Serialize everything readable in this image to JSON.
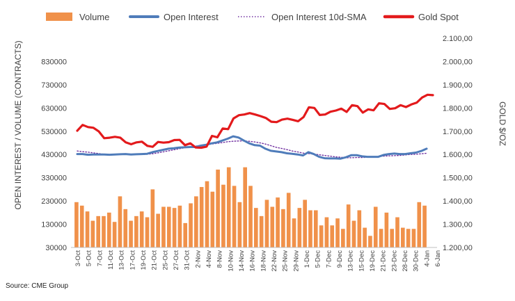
{
  "colors": {
    "volume": "#F0914A",
    "open_interest": "#4F7CBA",
    "sma": "#7030A0",
    "gold": "#E31A1C",
    "text": "#404040"
  },
  "legend": [
    {
      "key": "volume",
      "label": "Volume",
      "style": "bar"
    },
    {
      "key": "open_interest",
      "label": "Open Interest",
      "style": "line"
    },
    {
      "key": "sma",
      "label": "Open Interest 10d-SMA",
      "style": "dotted"
    },
    {
      "key": "gold",
      "label": "Gold Spot",
      "style": "thick"
    }
  ],
  "source": "Source: CME Group",
  "chart_data": {
    "type": "bar",
    "ylabel": "OPEN INTEREST / VOLUME (CONTRACTS)",
    "y2label": "GOLD $/OZ",
    "ylim": [
      30000,
      930000
    ],
    "y_ticks": [
      "30000",
      "130000",
      "230000",
      "330000",
      "430000",
      "530000",
      "630000",
      "730000",
      "830000"
    ],
    "y2lim": [
      1200,
      2100
    ],
    "y2_ticks": [
      "1.200,00",
      "1.300,00",
      "1.400,00",
      "1.500,00",
      "1.600,00",
      "1.700,00",
      "1.800,00",
      "1.900,00",
      "2.000,00",
      "2.100,00"
    ],
    "x_labels": [
      "3-Oct",
      "5-Oct",
      "7-Oct",
      "11-Oct",
      "13-Oct",
      "17-Oct",
      "19-Oct",
      "21-Oct",
      "25-Oct",
      "27-Oct",
      "31-Oct",
      "2-Nov",
      "4-Nov",
      "8-Nov",
      "10-Nov",
      "14-Nov",
      "16-Nov",
      "18-Nov",
      "22-Nov",
      "25-Nov",
      "29-Nov",
      "1-Dec",
      "5-Dec",
      "7-Dec",
      "9-Dec",
      "13-Dec",
      "15-Dec",
      "19-Dec",
      "21-Dec",
      "23-Dec",
      "28-Dec",
      "30-Dec",
      "4-Jan",
      "6-Jan"
    ],
    "series": [
      {
        "name": "Volume",
        "kind": "bar",
        "axis": "left",
        "values": [
          225000,
          210000,
          185000,
          145000,
          165000,
          165000,
          180000,
          140000,
          250000,
          195000,
          145000,
          165000,
          185000,
          160000,
          280000,
          175000,
          205000,
          205000,
          200000,
          210000,
          135000,
          220000,
          250000,
          290000,
          315000,
          270000,
          365000,
          300000,
          375000,
          295000,
          225000,
          375000,
          295000,
          200000,
          165000,
          235000,
          205000,
          245000,
          195000,
          265000,
          155000,
          200000,
          235000,
          190000,
          190000,
          125000,
          160000,
          125000,
          155000,
          110000,
          215000,
          145000,
          190000,
          115000,
          80000,
          205000,
          110000,
          180000,
          110000,
          160000,
          115000,
          110000,
          110000,
          225000,
          210000
        ]
      },
      {
        "name": "Open Interest",
        "kind": "line",
        "axis": "left",
        "values": [
          432000,
          432000,
          429000,
          430000,
          430000,
          430000,
          429000,
          430000,
          431000,
          432000,
          430000,
          431000,
          432000,
          433000,
          440000,
          445000,
          450000,
          455000,
          457000,
          460000,
          461000,
          462000,
          462000,
          468000,
          472000,
          478000,
          482000,
          490000,
          498000,
          508000,
          503000,
          490000,
          478000,
          470000,
          468000,
          455000,
          446000,
          443000,
          440000,
          435000,
          433000,
          430000,
          426000,
          440000,
          432000,
          420000,
          414000,
          413000,
          413000,
          412000,
          418000,
          427000,
          427000,
          422000,
          420000,
          420000,
          420000,
          428000,
          432000,
          434000,
          432000,
          432000,
          435000,
          438000,
          445000,
          455000
        ]
      },
      {
        "name": "Open Interest 10d-SMA",
        "kind": "line",
        "axis": "left",
        "values": [
          445000,
          442000,
          440000,
          437000,
          434000,
          431000,
          430000,
          430000,
          430000,
          431000,
          430000,
          430000,
          430000,
          431000,
          433000,
          437000,
          441000,
          446000,
          450000,
          455000,
          459000,
          463000,
          466000,
          469000,
          472000,
          475000,
          478000,
          481000,
          485000,
          487000,
          488000,
          488000,
          487000,
          484000,
          480000,
          475000,
          468000,
          461000,
          456000,
          451000,
          445000,
          441000,
          436000,
          434000,
          432000,
          429000,
          426000,
          423000,
          420000,
          418000,
          416000,
          416000,
          417000,
          417000,
          418000,
          420000,
          421000,
          423000,
          424000,
          425000,
          426000,
          428000,
          430000,
          431000,
          433000,
          435000
        ]
      },
      {
        "name": "Gold Spot",
        "kind": "line",
        "axis": "right",
        "values": [
          1702,
          1727,
          1718,
          1715,
          1699,
          1670,
          1672,
          1676,
          1672,
          1652,
          1644,
          1652,
          1655,
          1637,
          1633,
          1654,
          1651,
          1653,
          1662,
          1663,
          1640,
          1648,
          1630,
          1629,
          1634,
          1680,
          1674,
          1712,
          1709,
          1755,
          1769,
          1772,
          1778,
          1772,
          1765,
          1757,
          1741,
          1739,
          1750,
          1754,
          1749,
          1743,
          1761,
          1803,
          1800,
          1770,
          1772,
          1784,
          1789,
          1797,
          1783,
          1812,
          1808,
          1780,
          1794,
          1790,
          1820,
          1817,
          1796,
          1799,
          1812,
          1804,
          1815,
          1823,
          1845,
          1857,
          1855
        ]
      }
    ]
  }
}
